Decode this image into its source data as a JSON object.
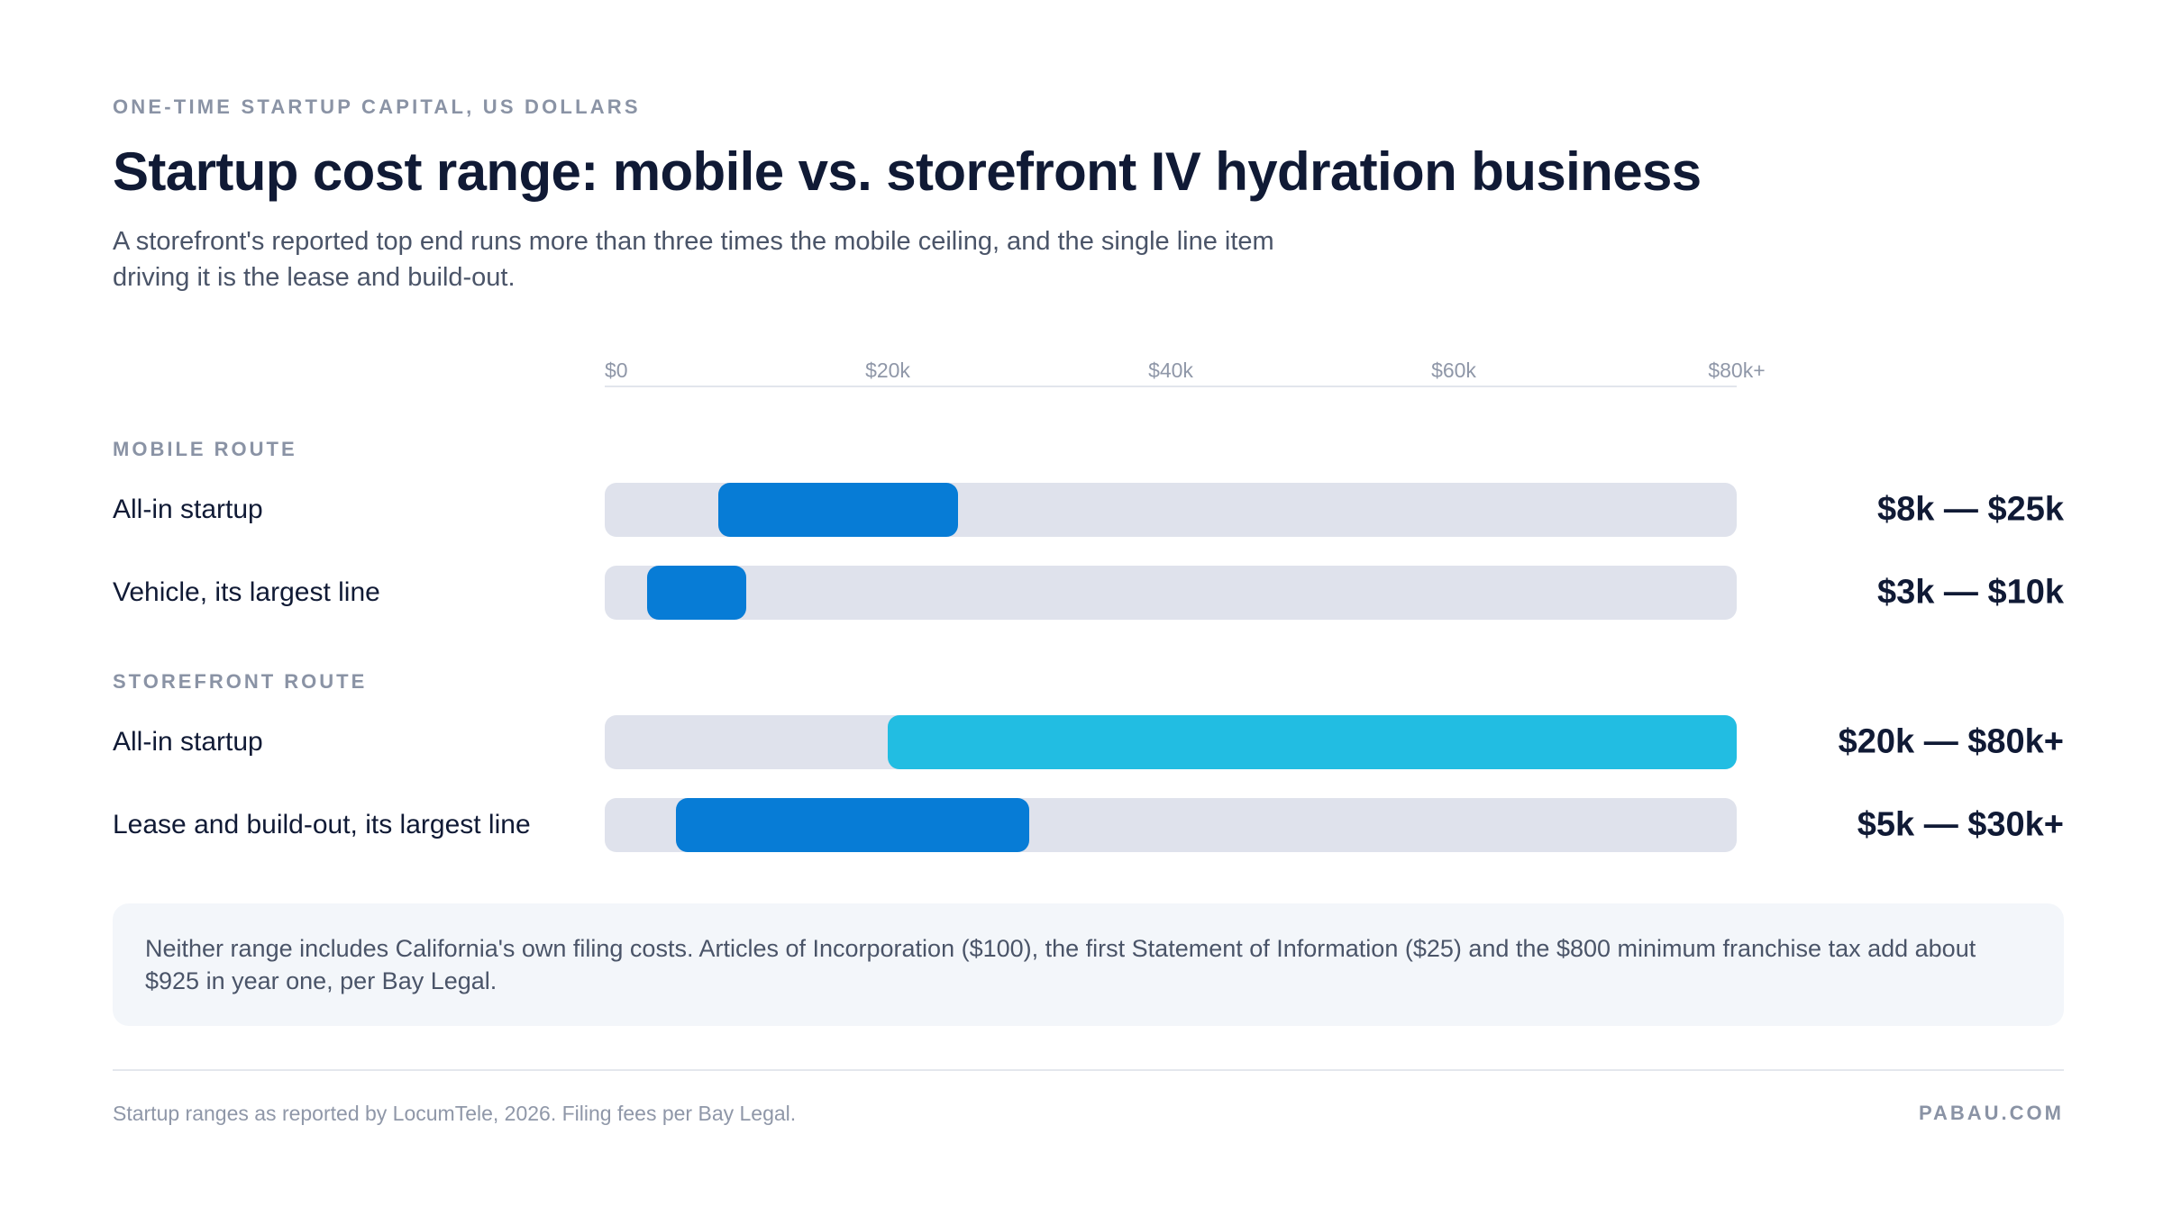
{
  "eyebrow": "ONE-TIME STARTUP CAPITAL, US DOLLARS",
  "title": "Startup cost range: mobile vs. storefront IV hydration business",
  "subtitle": "A storefront's reported top end runs more than three times the mobile ceiling, and the single line item driving it is the lease and build-out.",
  "note": "Neither range includes California's own filing costs. Articles of Incorporation ($100), the first Statement of Information ($25) and the $800 minimum franchise tax add about $925 in year one, per Bay Legal.",
  "source": "Startup ranges as reported by LocumTele, 2026. Filing fees per Bay Legal.",
  "brand": "PABAU.COM",
  "colors": {
    "mobile": "#077cd6",
    "storefront_all_in": "#22bde2",
    "storefront_line": "#077cd6",
    "track": "#dfe2ec"
  },
  "chart_data": {
    "type": "bar",
    "orientation": "horizontal-range",
    "x_unit": "US dollars",
    "xlim": [
      0,
      80000
    ],
    "ticks": [
      {
        "value": 0,
        "label": "$0"
      },
      {
        "value": 20000,
        "label": "$20k"
      },
      {
        "value": 40000,
        "label": "$40k"
      },
      {
        "value": 60000,
        "label": "$60k"
      },
      {
        "value": 80000,
        "label": "$80k+"
      }
    ],
    "groups": [
      {
        "label": "MOBILE ROUTE",
        "rows": [
          {
            "label": "All-in startup",
            "low": 8000,
            "high": 25000,
            "value_label": "$8k — $25k",
            "color": "#077cd6"
          },
          {
            "label": "Vehicle, its largest line",
            "low": 3000,
            "high": 10000,
            "value_label": "$3k — $10k",
            "color": "#077cd6"
          }
        ]
      },
      {
        "label": "STOREFRONT ROUTE",
        "rows": [
          {
            "label": "All-in startup",
            "low": 20000,
            "high": 80000,
            "value_label": "$20k — $80k+",
            "color": "#22bde2"
          },
          {
            "label": "Lease and build-out, its largest line",
            "low": 5000,
            "high": 30000,
            "value_label": "$5k — $30k+",
            "color": "#077cd6"
          }
        ]
      }
    ]
  }
}
